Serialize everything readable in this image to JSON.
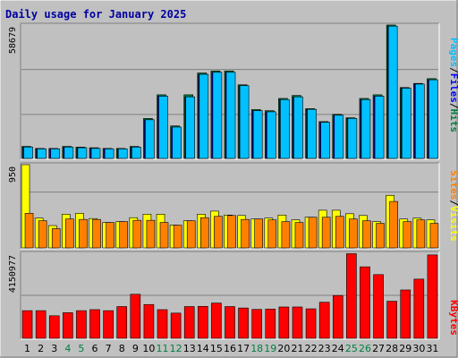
{
  "title": "Daily usage for January 2025",
  "colors": {
    "background": "#C0C0C0",
    "title": "#0000A0",
    "hits": "#008040",
    "files": "#0000FF",
    "pages": "#00C0FF",
    "visits": "#FFFF00",
    "sites": "#FF8000",
    "kbytes": "#FF0000",
    "weekend_day_label": "#008040",
    "weekday_label": "#000000"
  },
  "chart_data": [
    {
      "type": "bar",
      "name": "hits-files-pages",
      "ymax_label": "58679",
      "ylim": [
        0,
        58679
      ],
      "legend": [
        {
          "label": "Pages",
          "color": "#00C0FF"
        },
        {
          "label": "Files",
          "color": "#0000FF"
        },
        {
          "label": "Hits",
          "color": "#008040"
        }
      ],
      "categories": [
        "1",
        "2",
        "3",
        "4",
        "5",
        "6",
        "7",
        "8",
        "9",
        "10",
        "11",
        "12",
        "13",
        "14",
        "15",
        "16",
        "17",
        "18",
        "19",
        "20",
        "21",
        "22",
        "23",
        "24",
        "25",
        "26",
        "27",
        "28",
        "29",
        "30",
        "31"
      ],
      "series": [
        {
          "name": "Hits",
          "values": [
            5300,
            4400,
            4400,
            5300,
            5000,
            4700,
            4400,
            4400,
            5300,
            17600,
            28000,
            14300,
            28000,
            37600,
            38500,
            38500,
            32400,
            21500,
            21000,
            26400,
            27700,
            21900,
            16200,
            19400,
            17900,
            26400,
            28000,
            58700,
            31200,
            33000,
            35100
          ]
        },
        {
          "name": "Files",
          "values": [
            5000,
            4200,
            4200,
            5000,
            4700,
            4400,
            4200,
            4200,
            5000,
            17000,
            27400,
            13800,
            27100,
            37000,
            37900,
            37900,
            32000,
            21000,
            20500,
            25900,
            27100,
            21600,
            15900,
            19000,
            17600,
            25900,
            27400,
            58200,
            30900,
            32700,
            34600
          ]
        },
        {
          "name": "Pages",
          "values": [
            5000,
            4200,
            4200,
            5000,
            4700,
            4400,
            4200,
            4200,
            5000,
            17000,
            27400,
            13800,
            27100,
            37000,
            37900,
            37900,
            32000,
            21000,
            20500,
            25900,
            27100,
            21600,
            15900,
            19000,
            17600,
            25900,
            27400,
            58200,
            30900,
            32700,
            34600
          ]
        }
      ]
    },
    {
      "type": "bar",
      "name": "visits-sites",
      "ymax_label": "950",
      "ylim": [
        0,
        950
      ],
      "legend": [
        {
          "label": "Sites",
          "color": "#FF8000"
        },
        {
          "label": "Visits",
          "color": "#FFFF00"
        }
      ],
      "categories": [
        "1",
        "2",
        "3",
        "4",
        "5",
        "6",
        "7",
        "8",
        "9",
        "10",
        "11",
        "12",
        "13",
        "14",
        "15",
        "16",
        "17",
        "18",
        "19",
        "20",
        "21",
        "22",
        "23",
        "24",
        "25",
        "26",
        "27",
        "28",
        "29",
        "30",
        "31"
      ],
      "series": [
        {
          "name": "Visits",
          "values": [
            950,
            340,
            255,
            385,
            395,
            335,
            290,
            300,
            345,
            385,
            385,
            260,
            310,
            385,
            420,
            375,
            370,
            330,
            340,
            375,
            320,
            350,
            430,
            430,
            390,
            370,
            300,
            600,
            330,
            340,
            320
          ]
        },
        {
          "name": "Sites",
          "values": [
            395,
            310,
            220,
            330,
            325,
            325,
            290,
            300,
            315,
            315,
            290,
            260,
            310,
            345,
            360,
            370,
            325,
            330,
            320,
            300,
            290,
            350,
            350,
            360,
            330,
            310,
            280,
            530,
            300,
            320,
            280
          ]
        }
      ]
    },
    {
      "type": "bar",
      "name": "kbytes",
      "ymax_label": "4150977",
      "ylim": [
        0,
        4150977
      ],
      "legend": [
        {
          "label": "KBytes",
          "color": "#FF0000"
        }
      ],
      "categories": [
        "1",
        "2",
        "3",
        "4",
        "5",
        "6",
        "7",
        "8",
        "9",
        "10",
        "11",
        "12",
        "13",
        "14",
        "15",
        "16",
        "17",
        "18",
        "19",
        "20",
        "21",
        "22",
        "23",
        "24",
        "25",
        "26",
        "27",
        "28",
        "29",
        "30",
        "31"
      ],
      "series": [
        {
          "name": "KBytes",
          "values": [
            1350000,
            1350000,
            1100000,
            1250000,
            1350000,
            1400000,
            1350000,
            1550000,
            2150000,
            1650000,
            1400000,
            1230000,
            1550000,
            1560000,
            1720000,
            1550000,
            1480000,
            1410000,
            1430000,
            1530000,
            1530000,
            1440000,
            1760000,
            2090000,
            4130000,
            3490000,
            3110000,
            1810000,
            2360000,
            2890000,
            4070000
          ]
        }
      ]
    }
  ],
  "x_axis": {
    "day_labels": [
      "1",
      "2",
      "3",
      "4",
      "5",
      "6",
      "7",
      "8",
      "9",
      "10",
      "11",
      "12",
      "13",
      "14",
      "15",
      "16",
      "17",
      "18",
      "19",
      "20",
      "21",
      "22",
      "23",
      "24",
      "25",
      "26",
      "27",
      "28",
      "29",
      "30",
      "31"
    ],
    "weekend_days": [
      "4",
      "5",
      "11",
      "12",
      "18",
      "19",
      "25",
      "26"
    ]
  },
  "right_labels": {
    "top": [
      {
        "text": "Pages",
        "color": "#00C0FF"
      },
      {
        "text": "/",
        "color": "#000000"
      },
      {
        "text": "Files",
        "color": "#0000FF"
      },
      {
        "text": "/",
        "color": "#000000"
      },
      {
        "text": "Hits",
        "color": "#008040"
      }
    ],
    "middle": [
      {
        "text": "Sites",
        "color": "#FF8000"
      },
      {
        "text": "/",
        "color": "#000000"
      },
      {
        "text": "Visits",
        "color": "#FFFF00"
      }
    ],
    "bottom": [
      {
        "text": "KBytes",
        "color": "#FF0000"
      }
    ]
  }
}
